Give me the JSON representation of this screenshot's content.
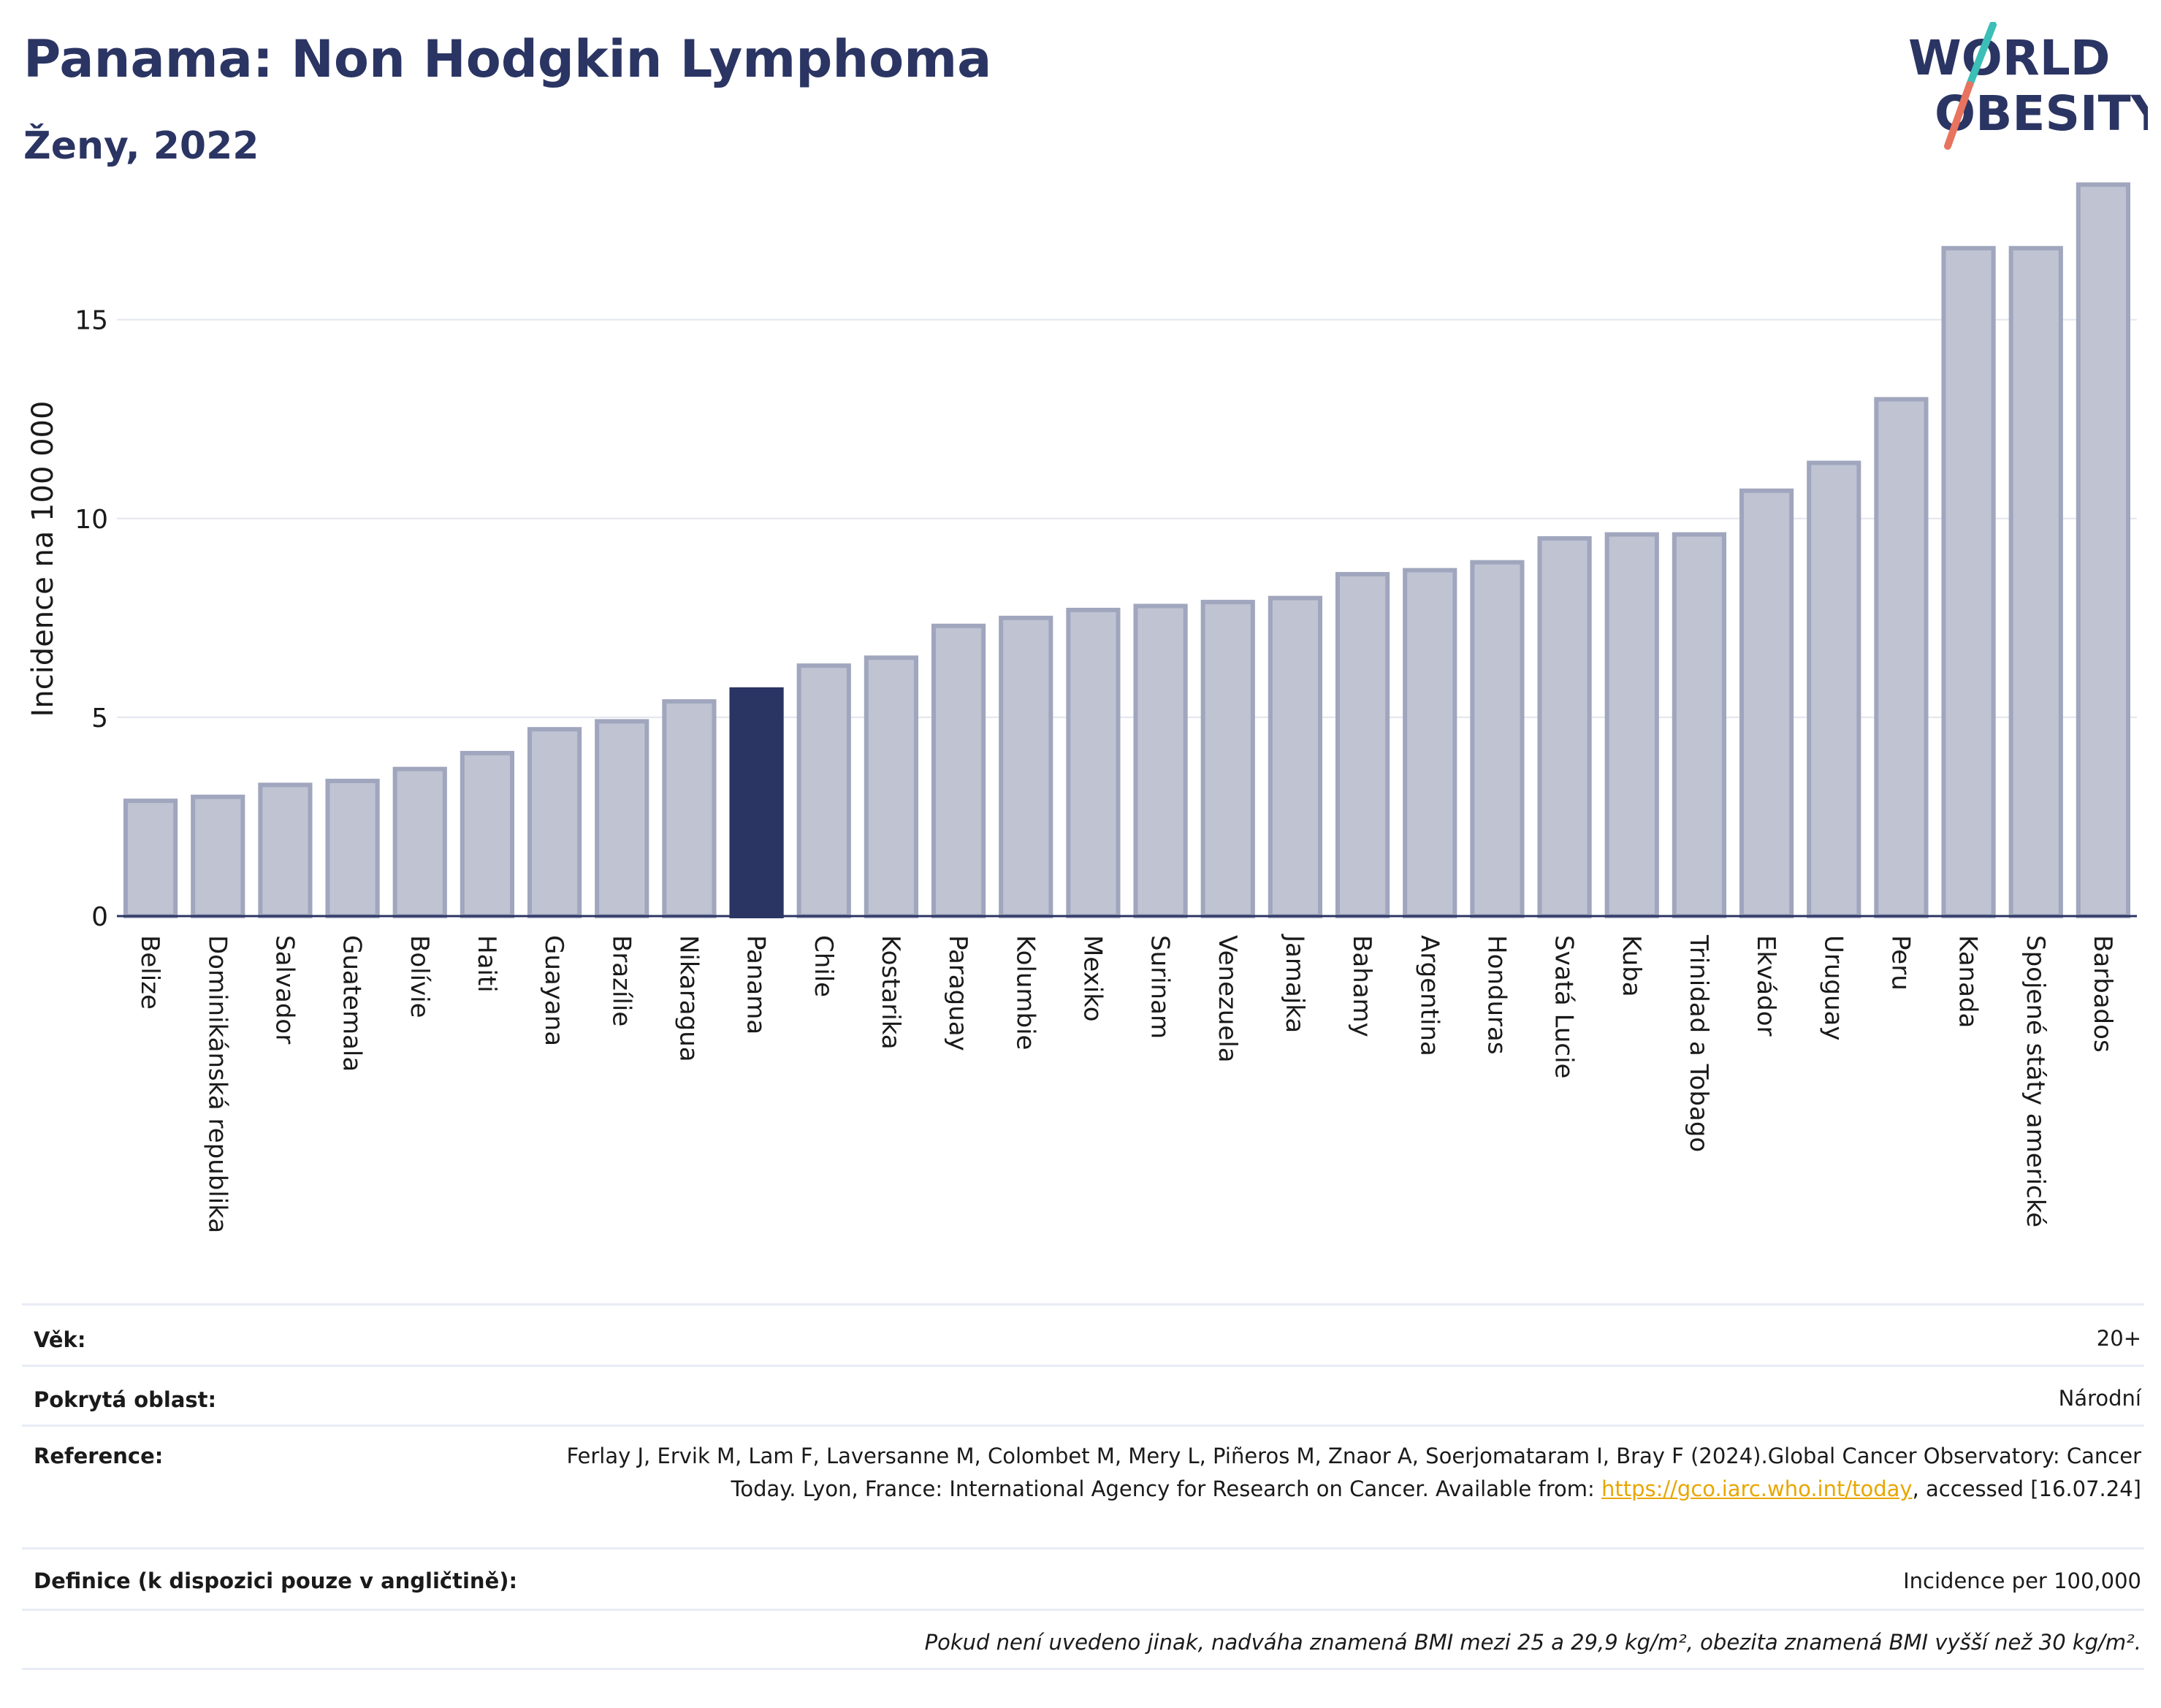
{
  "header": {
    "title": "Panama: Non Hodgkin Lymphoma",
    "subtitle": "Ženy, 2022"
  },
  "logo": {
    "line1": "WORLD",
    "line2": "OBESITY"
  },
  "colors": {
    "bar": "#bfc3d2",
    "bar_border": "#a0a6bd",
    "highlight": "#2b3563",
    "grid": "#e3e6ee",
    "logo_text": "#2b3563",
    "logo_slash_teal": "#3bbfb6",
    "logo_slash_coral": "#e8735f"
  },
  "chart_data": {
    "type": "bar",
    "ylabel": "Incidence na 100 000",
    "xlabel": "",
    "ylim": [
      0,
      19
    ],
    "yticks": [
      0,
      5,
      10,
      15
    ],
    "grid": true,
    "highlight": "Panama",
    "categories": [
      "Belize",
      "Dominikánská republika",
      "Salvador",
      "Guatemala",
      "Bolívie",
      "Haiti",
      "Guayana",
      "Brazílie",
      "Nikaragua",
      "Panama",
      "Chile",
      "Kostarika",
      "Paraguay",
      "Kolumbie",
      "Mexiko",
      "Surinam",
      "Venezuela",
      "Jamajka",
      "Bahamy",
      "Argentina",
      "Honduras",
      "Svatá Lucie",
      "Kuba",
      "Trinidad a Tobago",
      "Ekvádor",
      "Uruguay",
      "Peru",
      "Kanada",
      "Spojené státy americké",
      "Barbados"
    ],
    "values": [
      2.9,
      3.0,
      3.3,
      3.4,
      3.7,
      4.1,
      4.7,
      4.9,
      5.4,
      5.7,
      6.3,
      6.5,
      7.3,
      7.5,
      7.7,
      7.8,
      7.9,
      8.0,
      8.6,
      8.7,
      8.9,
      9.5,
      9.6,
      9.6,
      10.7,
      11.4,
      13.0,
      16.8,
      16.8,
      18.4
    ]
  },
  "meta": {
    "age_label": "Věk:",
    "age_value": "20+",
    "area_label": "Pokrytá oblast:",
    "area_value": "Národní",
    "reference_label": "Reference:",
    "reference_text_1": "Ferlay J, Ervik M, Lam F, Laversanne M, Colombet M, Mery L, Piñeros M, Znaor A, Soerjomataram I, Bray F (2024).Global Cancer Observatory: Cancer Today. Lyon, France: International Agency for Research on Cancer. Available from: ",
    "reference_link": "https://gco.iarc.who.int/today",
    "reference_text_2": ", accessed [16.07.24]",
    "definition_label": "Definice (k dispozici pouze v angličtině):",
    "definition_value": "Incidence per 100,000",
    "note": "Pokud není uvedeno jinak, nadváha znamená BMI mezi 25 a 29,9 kg/m², obezita znamená BMI vyšší než 30 kg/m²."
  }
}
